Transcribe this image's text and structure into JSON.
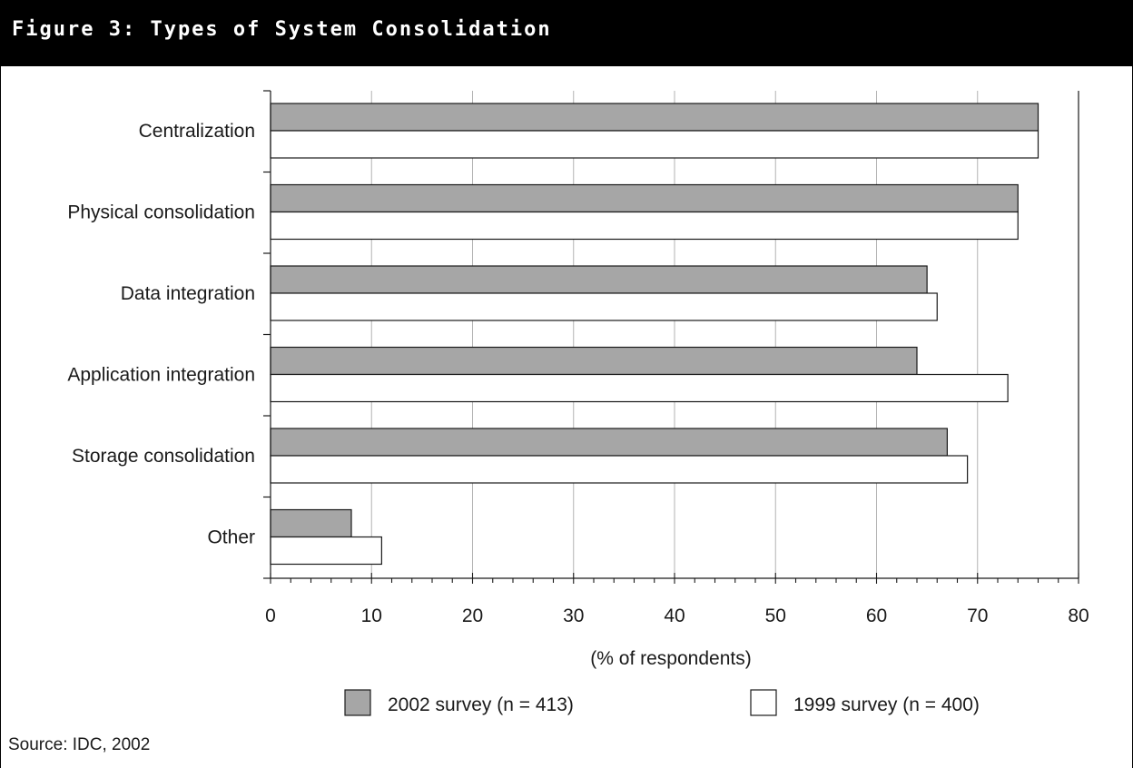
{
  "figure": {
    "title": "Figure 3: Types of System Consolidation",
    "source": "Source: IDC, 2002"
  },
  "colors": {
    "series_2002": "#a6a6a6",
    "series_1999": "#ffffff",
    "grid": "#b3b3b3",
    "header_bg": "#000000"
  },
  "chart_data": {
    "type": "bar",
    "orientation": "horizontal",
    "categories": [
      "Centralization",
      "Physical consolidation",
      "Data integration",
      "Application integration",
      "Storage consolidation",
      "Other"
    ],
    "series": [
      {
        "name": "2002 survey (n = 413)",
        "values": [
          76,
          74,
          65,
          64,
          67,
          8
        ]
      },
      {
        "name": "1999 survey (n = 400)",
        "values": [
          76,
          74,
          66,
          73,
          69,
          11
        ]
      }
    ],
    "xlabel": "(% of respondents)",
    "ylabel": "",
    "xlim": [
      0,
      80
    ],
    "xticks": [
      0,
      10,
      20,
      30,
      40,
      50,
      60,
      70,
      80
    ],
    "grid": true,
    "legend_position": "bottom"
  }
}
